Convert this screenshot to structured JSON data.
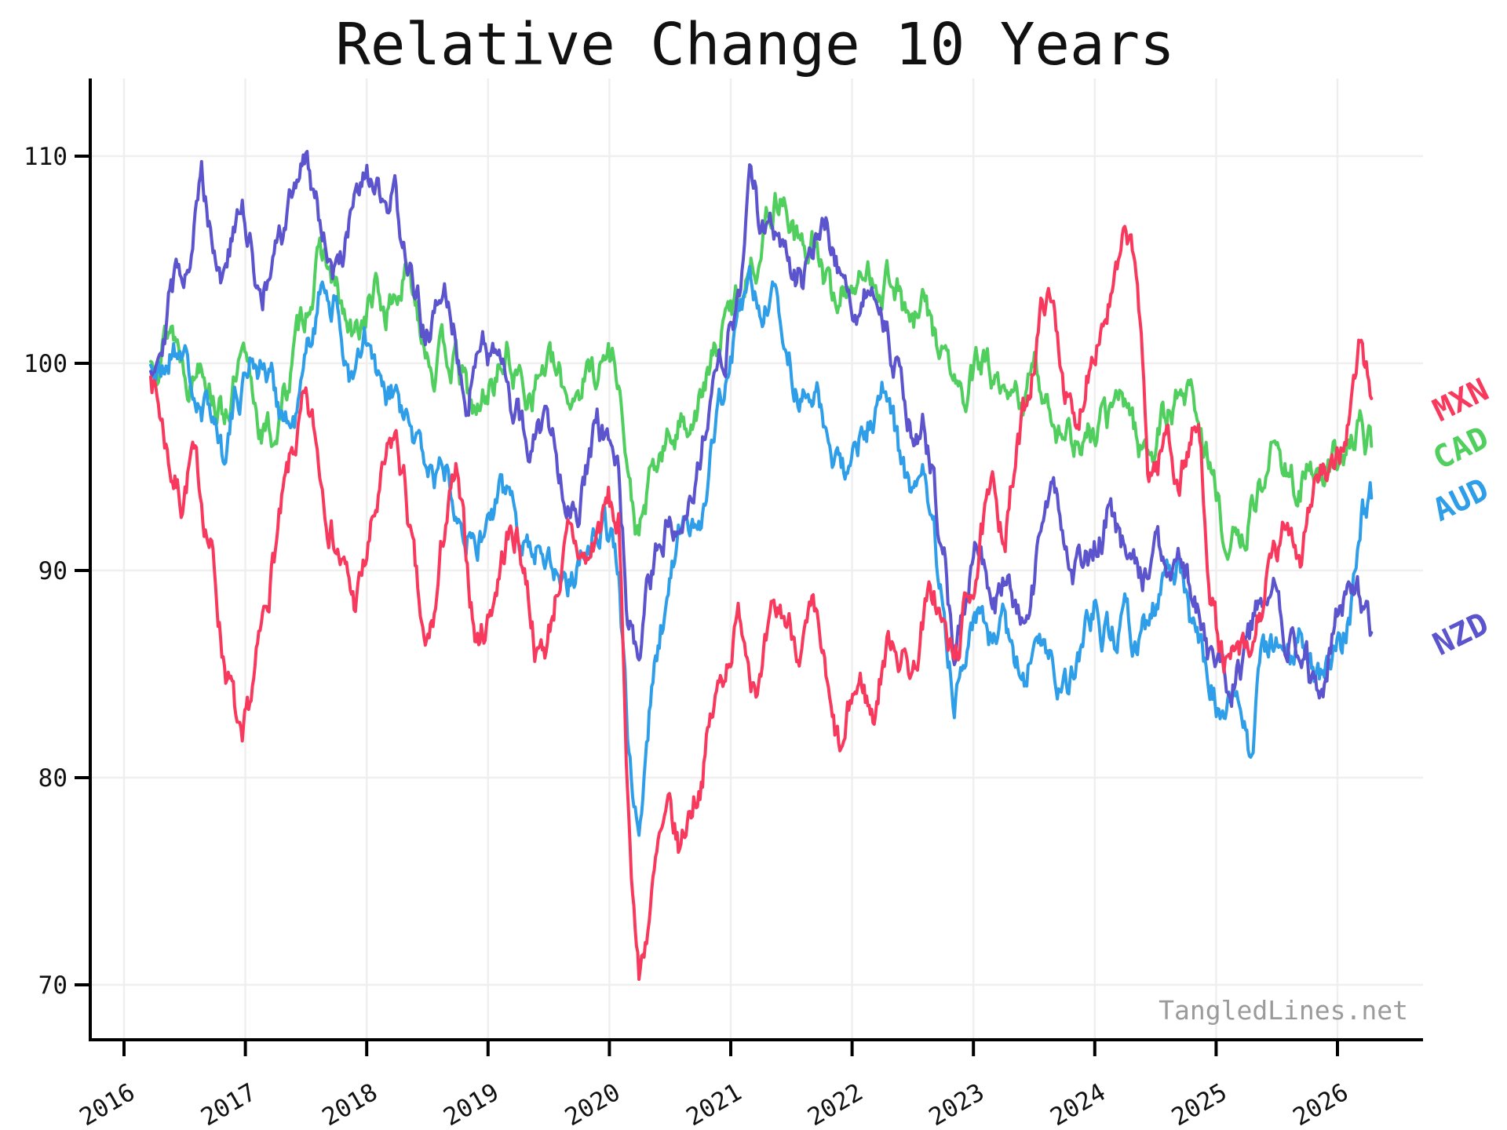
{
  "title": "Relative Change 10 Years",
  "watermark": "TangledLines.net",
  "styles": {
    "background": "#ffffff",
    "grid_color": "#efefef",
    "axis_color": "#000000",
    "tick_label_color": "#111111",
    "watermark_color": "#9b9b9b"
  },
  "chart_data": {
    "type": "line",
    "title": "Relative Change 10 Years",
    "xlabel": "",
    "ylabel": "",
    "grid": true,
    "legend_position": "right of plot, colored labels at each line endpoint, rotated",
    "x_axis": {
      "ticks": [
        "2016",
        "2017",
        "2018",
        "2019",
        "2020",
        "2021",
        "2022",
        "2023",
        "2024",
        "2025",
        "2026"
      ],
      "t_start": 2016.22,
      "t_end": 2026.28,
      "tick_rotation_deg": -30
    },
    "y_axis": {
      "ticks": [
        "70",
        "80",
        "90",
        "100",
        "110"
      ],
      "min": 67.4,
      "max": 113.8
    },
    "series": [
      {
        "name": "MXN",
        "color": "#F8395E",
        "values": [
          100,
          97.5,
          95,
          93.5,
          95.5,
          93.5,
          91,
          86.5,
          84,
          80.5,
          84,
          87,
          90.5,
          93,
          95.5,
          97.5,
          96.5,
          94,
          92,
          90,
          88.3,
          90,
          92.5,
          94.5,
          96.3,
          94,
          89.5,
          85.5,
          88,
          92.5,
          94.3,
          90.5,
          86.5,
          87.5,
          89.5,
          91.5,
          91.8,
          89.5,
          86,
          86.5,
          89.5,
          91.2,
          90.8,
          90.3,
          92,
          93.2,
          92,
          78,
          70.3,
          73.5,
          76.5,
          77.8,
          76.3,
          78.5,
          80,
          82.5,
          84.5,
          86.5,
          87.8,
          85.8,
          84.8,
          86.8,
          87.8,
          87.2,
          86.5,
          87.3,
          85.8,
          82,
          80.8,
          83.8,
          84.5,
          82.8,
          85.8,
          87,
          85.8,
          85.2,
          87.8,
          88.8,
          87,
          85.3,
          87.8,
          90,
          92.3,
          93.5,
          92,
          95,
          97.8,
          101,
          103.5,
          101.8,
          98.8,
          96,
          99.8,
          101.8,
          102.8,
          104,
          105.8,
          104,
          94.8,
          95.2,
          96.8,
          94.3,
          96,
          96.8,
          90.5,
          86.3,
          85,
          85.8,
          85.2,
          87.8,
          89.8,
          90.8,
          92.3,
          91,
          93.8,
          94.8,
          93.8,
          95.8,
          98,
          101,
          98.3
        ]
      },
      {
        "name": "CAD",
        "color": "#50CE5E",
        "values": [
          100,
          101.3,
          102,
          100.6,
          99.4,
          100.8,
          99.2,
          97.6,
          98.6,
          99.8,
          98.4,
          96.8,
          96.4,
          98,
          100.2,
          102.2,
          104.2,
          105.3,
          103.6,
          102,
          100.8,
          102.2,
          103.4,
          102.4,
          103.2,
          104.2,
          103,
          101.4,
          99.8,
          100.6,
          100,
          98.6,
          97.2,
          98.6,
          99.6,
          100.3,
          99.4,
          98.8,
          99.4,
          100.2,
          99,
          98.4,
          99,
          99.6,
          99.9,
          100.5,
          99.8,
          93.8,
          91.4,
          93.8,
          95.2,
          96.2,
          97,
          97.6,
          98.2,
          99.6,
          101.2,
          102.4,
          103.6,
          105,
          105.8,
          107.6,
          108.4,
          106.8,
          105.2,
          106,
          104.4,
          102.8,
          103.6,
          104.2,
          103.6,
          104.6,
          104,
          104.6,
          102.8,
          101.6,
          102.6,
          101.4,
          100.4,
          99,
          98,
          99.2,
          100.2,
          99,
          97.4,
          98,
          98.6,
          99.6,
          98.4,
          97.4,
          96.8,
          96.4,
          96,
          96.6,
          97.2,
          97.8,
          98.3,
          96.4,
          95.8,
          96.6,
          97.6,
          98.2,
          98.8,
          97.4,
          95.4,
          92.8,
          91.4,
          91,
          92.6,
          94.2,
          95.4,
          95.8,
          94.9,
          94,
          94.9,
          93.8,
          94.4,
          95.2,
          95.9,
          96.8,
          96
        ]
      },
      {
        "name": "AUD",
        "color": "#2F9EE8",
        "values": [
          100,
          99.2,
          100.6,
          101,
          99,
          97,
          98,
          96,
          97.6,
          99,
          100.6,
          100,
          99,
          97.6,
          96.8,
          99,
          102,
          104.2,
          103,
          100.6,
          99,
          100.8,
          99.6,
          97.6,
          98.4,
          97,
          96,
          95.4,
          94.6,
          95,
          94,
          92.6,
          91,
          92.2,
          93,
          93.6,
          92.6,
          91.6,
          91,
          91.6,
          90,
          89.4,
          90.6,
          91.6,
          92.4,
          92,
          90.4,
          80.5,
          77,
          83,
          86.6,
          89.4,
          91.4,
          92,
          93,
          95.4,
          98,
          100.2,
          102.4,
          103.8,
          102.6,
          103.4,
          102,
          100,
          98,
          99,
          97.6,
          96,
          94.6,
          95.6,
          96.2,
          97.6,
          99,
          97,
          94.6,
          93,
          94,
          91.6,
          88,
          84,
          86.6,
          88.6,
          87.6,
          86.2,
          87,
          86,
          85,
          87,
          86,
          84.6,
          84,
          85,
          87.6,
          88.6,
          87,
          86.6,
          87.4,
          86.6,
          87,
          88,
          89.6,
          90.2,
          88,
          86,
          84.6,
          83.4,
          83,
          84,
          81,
          85.4,
          86,
          86.6,
          86,
          86.6,
          85.6,
          84.4,
          85,
          86,
          88,
          92.6,
          93.5
        ]
      },
      {
        "name": "NZD",
        "color": "#5B54CD",
        "values": [
          100,
          101.6,
          103.6,
          104.6,
          106,
          109,
          106.6,
          104.4,
          106,
          107.2,
          105,
          103.4,
          104.6,
          106,
          108,
          110.4,
          108.6,
          106.4,
          104.4,
          105.6,
          107.2,
          108.2,
          108.8,
          106.6,
          107.6,
          105.6,
          103,
          101.4,
          102.2,
          103.2,
          101,
          99,
          100.2,
          101.6,
          100,
          98.4,
          97.4,
          96,
          96.6,
          97.6,
          95.4,
          94,
          93.4,
          95,
          96.6,
          96,
          94.4,
          87,
          85,
          89,
          91,
          92.6,
          93,
          94,
          95.6,
          97.6,
          99.6,
          101.6,
          104.2,
          108.8,
          106.6,
          107.2,
          106,
          104.4,
          104,
          105.6,
          107,
          106,
          104,
          102.4,
          103,
          104.2,
          103,
          100.6,
          98,
          96.4,
          97,
          94,
          90.6,
          85.2,
          88,
          91,
          90,
          88.6,
          89.6,
          88,
          87.4,
          90,
          93.6,
          93,
          91,
          90,
          90.6,
          91.4,
          92.6,
          91.6,
          90.4,
          89.4,
          90,
          91,
          90.6,
          91,
          89.6,
          88,
          85.6,
          84.4,
          83.6,
          85.6,
          86.6,
          88.2,
          88.9,
          88.2,
          87,
          86.2,
          84.9,
          84,
          86.4,
          88.4,
          89,
          88.4,
          87
        ]
      }
    ]
  }
}
